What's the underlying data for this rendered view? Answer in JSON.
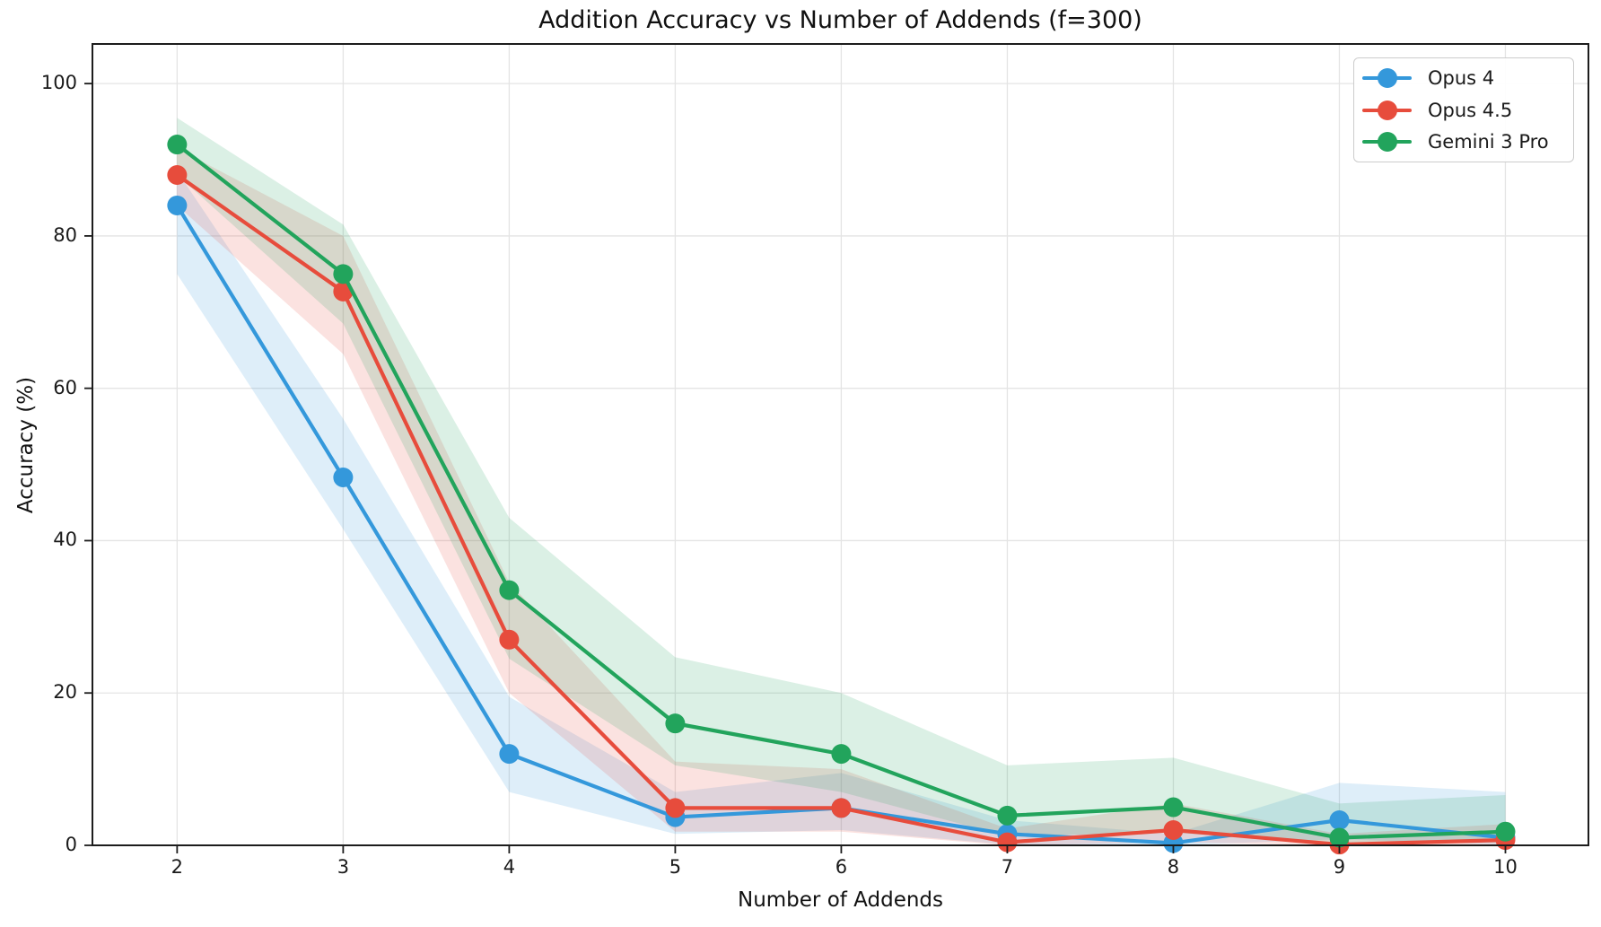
{
  "chart_data": {
    "type": "line",
    "title": "Addition Accuracy vs Number of Addends (f=300)",
    "xlabel": "Number of Addends",
    "ylabel": "Accuracy (%)",
    "x": [
      2,
      3,
      4,
      5,
      6,
      7,
      8,
      9,
      10
    ],
    "x_ticks": [
      2,
      3,
      4,
      5,
      6,
      7,
      8,
      9,
      10
    ],
    "y_ticks": [
      0,
      20,
      40,
      60,
      80,
      100
    ],
    "xlim": [
      1.49,
      10.5
    ],
    "ylim": [
      0,
      105.2
    ],
    "grid": true,
    "legend_position": "upper right",
    "series": [
      {
        "name": "Opus 4",
        "color": "#3498db",
        "values": [
          84,
          48.3,
          12,
          3.7,
          4.9,
          1.5,
          0.3,
          3.3,
          1
        ],
        "band_lower": [
          75,
          41.5,
          7,
          1.5,
          2,
          0.1,
          0,
          0.8,
          0.1
        ],
        "band_upper": [
          88.5,
          56,
          19.5,
          7,
          9.5,
          3.3,
          1.5,
          8.2,
          7
        ]
      },
      {
        "name": "Opus 4.5",
        "color": "#e74c3c",
        "values": [
          88,
          72.7,
          27,
          4.9,
          4.9,
          0.4,
          2,
          0.1,
          0.7
        ],
        "band_lower": [
          84,
          64.5,
          20,
          1.8,
          1.8,
          0,
          0.4,
          0,
          0
        ],
        "band_upper": [
          91.5,
          80,
          34.5,
          11,
          10,
          2.2,
          5.5,
          1.5,
          2.8
        ]
      },
      {
        "name": "Gemini 3 Pro",
        "color": "#22a45c",
        "values": [
          92,
          75,
          33.5,
          16,
          12,
          3.9,
          5,
          1,
          1.8
        ],
        "band_lower": [
          88,
          68.5,
          24.5,
          10.5,
          7,
          1.2,
          1.7,
          0.1,
          0.4
        ],
        "band_upper": [
          95.5,
          81.5,
          43,
          24.7,
          20,
          10.5,
          11.5,
          5.5,
          6.6
        ]
      }
    ]
  }
}
